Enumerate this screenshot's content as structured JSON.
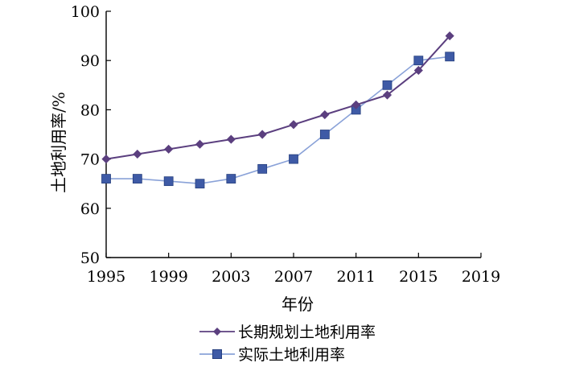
{
  "chart_data": {
    "type": "line",
    "xlabel": "年份",
    "ylabel": "土地利用率/%",
    "xlim": [
      1995,
      2019
    ],
    "ylim": [
      50,
      100
    ],
    "x_ticks": [
      1995,
      1999,
      2003,
      2007,
      2011,
      2015,
      2019
    ],
    "y_ticks": [
      50,
      60,
      70,
      80,
      90,
      100
    ],
    "grid": false,
    "legend_position": "bottom",
    "series": [
      {
        "name": "长期规划土地利用率",
        "marker": "diamond",
        "color": "#5b3f7f",
        "x": [
          1995,
          1997,
          1999,
          2001,
          2003,
          2005,
          2007,
          2009,
          2011,
          2013,
          2015,
          2017
        ],
        "y": [
          70,
          71,
          72,
          73,
          74,
          75,
          77,
          79,
          81,
          83,
          88,
          95
        ]
      },
      {
        "name": "实际土地利用率",
        "marker": "square",
        "color": "#3e5aa6",
        "line_color": "#8aa2d8",
        "x": [
          1995,
          1997,
          1999,
          2001,
          2003,
          2005,
          2007,
          2009,
          2011,
          2013,
          2015,
          2017
        ],
        "y": [
          66,
          66,
          65.5,
          65,
          66,
          68,
          70,
          75,
          80,
          85,
          90,
          90.8
        ]
      }
    ]
  }
}
